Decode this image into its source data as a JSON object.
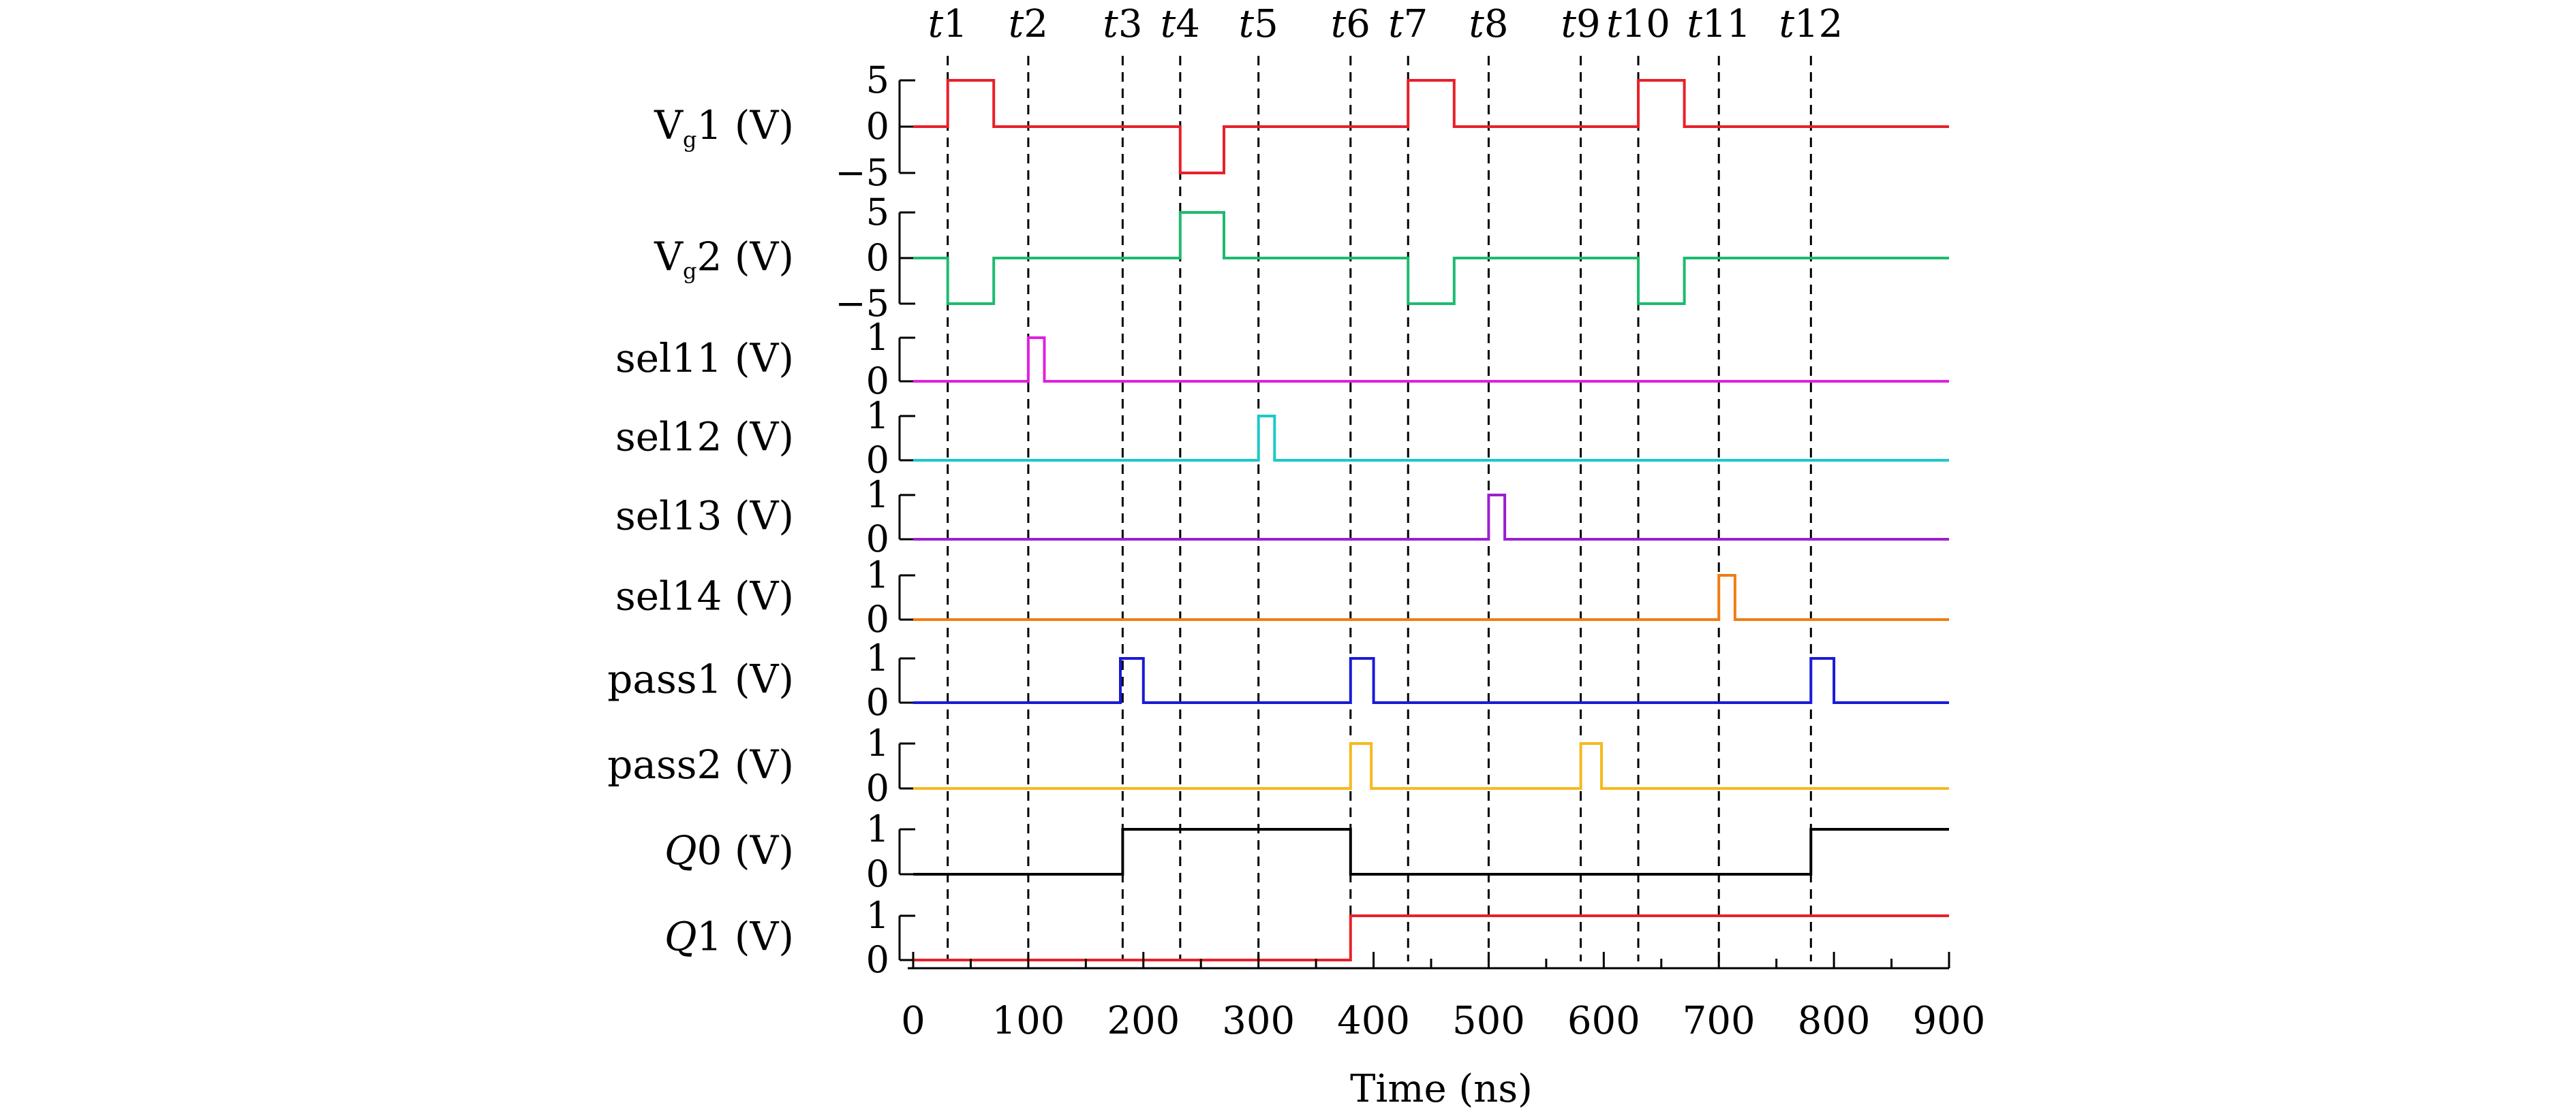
{
  "chart_data": {
    "type": "line",
    "title": "",
    "xlabel": "Time (ns)",
    "xlim": [
      0,
      900
    ],
    "x_ticks": [
      0,
      100,
      200,
      300,
      400,
      500,
      600,
      700,
      800,
      900
    ],
    "markers": [
      {
        "label": "t1",
        "t": 30
      },
      {
        "label": "t2",
        "t": 100
      },
      {
        "label": "t3",
        "t": 182
      },
      {
        "label": "t4",
        "t": 232
      },
      {
        "label": "t5",
        "t": 300
      },
      {
        "label": "t6",
        "t": 380
      },
      {
        "label": "t7",
        "t": 430
      },
      {
        "label": "t8",
        "t": 500
      },
      {
        "label": "t9",
        "t": 580
      },
      {
        "label": "t10",
        "t": 630
      },
      {
        "label": "t11",
        "t": 700
      },
      {
        "label": "t12",
        "t": 780
      }
    ],
    "series": [
      {
        "name": "Vg1 (V)",
        "name_main": "V",
        "name_sub": "g",
        "name_rest": "1 (V)",
        "color": "#e8202a",
        "ylim": [
          -5,
          5
        ],
        "yticks": [
          "5",
          "0",
          "−5"
        ],
        "points": [
          [
            0,
            0
          ],
          [
            30,
            0
          ],
          [
            30,
            5
          ],
          [
            70,
            5
          ],
          [
            70,
            0
          ],
          [
            232,
            0
          ],
          [
            232,
            -5
          ],
          [
            270,
            -5
          ],
          [
            270,
            0
          ],
          [
            430,
            0
          ],
          [
            430,
            5
          ],
          [
            470,
            5
          ],
          [
            470,
            0
          ],
          [
            630,
            0
          ],
          [
            630,
            5
          ],
          [
            670,
            5
          ],
          [
            670,
            0
          ],
          [
            900,
            0
          ]
        ]
      },
      {
        "name": "Vg2 (V)",
        "name_main": "V",
        "name_sub": "g",
        "name_rest": "2 (V)",
        "color": "#1dbb6e",
        "ylim": [
          -5,
          5
        ],
        "yticks": [
          "5",
          "0",
          "−5"
        ],
        "points": [
          [
            0,
            0
          ],
          [
            30,
            0
          ],
          [
            30,
            -5
          ],
          [
            70,
            -5
          ],
          [
            70,
            0
          ],
          [
            232,
            0
          ],
          [
            232,
            5
          ],
          [
            270,
            5
          ],
          [
            270,
            0
          ],
          [
            430,
            0
          ],
          [
            430,
            -5
          ],
          [
            470,
            -5
          ],
          [
            470,
            0
          ],
          [
            630,
            0
          ],
          [
            630,
            -5
          ],
          [
            670,
            -5
          ],
          [
            670,
            0
          ],
          [
            900,
            0
          ]
        ]
      },
      {
        "name": "sel11 (V)",
        "color": "#e020e0",
        "ylim": [
          0,
          1
        ],
        "yticks": [
          "1",
          "0"
        ],
        "points": [
          [
            0,
            0
          ],
          [
            100,
            0
          ],
          [
            100,
            1
          ],
          [
            114,
            1
          ],
          [
            114,
            0
          ],
          [
            900,
            0
          ]
        ]
      },
      {
        "name": "sel12 (V)",
        "color": "#1ec8c8",
        "ylim": [
          0,
          1
        ],
        "yticks": [
          "1",
          "0"
        ],
        "points": [
          [
            0,
            0
          ],
          [
            300,
            0
          ],
          [
            300,
            1
          ],
          [
            314,
            1
          ],
          [
            314,
            0
          ],
          [
            900,
            0
          ]
        ]
      },
      {
        "name": "sel13 (V)",
        "color": "#9b1fd0",
        "ylim": [
          0,
          1
        ],
        "yticks": [
          "1",
          "0"
        ],
        "points": [
          [
            0,
            0
          ],
          [
            500,
            0
          ],
          [
            500,
            1
          ],
          [
            514,
            1
          ],
          [
            514,
            0
          ],
          [
            900,
            0
          ]
        ]
      },
      {
        "name": "sel14 (V)",
        "color": "#f07d12",
        "ylim": [
          0,
          1
        ],
        "yticks": [
          "1",
          "0"
        ],
        "points": [
          [
            0,
            0
          ],
          [
            700,
            0
          ],
          [
            700,
            1
          ],
          [
            714,
            1
          ],
          [
            714,
            0
          ],
          [
            900,
            0
          ]
        ]
      },
      {
        "name": "pass1 (V)",
        "color": "#1a1ad8",
        "ylim": [
          0,
          1
        ],
        "yticks": [
          "1",
          "0"
        ],
        "points": [
          [
            0,
            0
          ],
          [
            180,
            0
          ],
          [
            180,
            1
          ],
          [
            200,
            1
          ],
          [
            200,
            0
          ],
          [
            380,
            0
          ],
          [
            380,
            1
          ],
          [
            400,
            1
          ],
          [
            400,
            0
          ],
          [
            780,
            0
          ],
          [
            780,
            1
          ],
          [
            800,
            1
          ],
          [
            800,
            0
          ],
          [
            900,
            0
          ]
        ]
      },
      {
        "name": "pass2 (V)",
        "color": "#f5b91e",
        "ylim": [
          0,
          1
        ],
        "yticks": [
          "1",
          "0"
        ],
        "points": [
          [
            0,
            0
          ],
          [
            380,
            0
          ],
          [
            380,
            1
          ],
          [
            398,
            1
          ],
          [
            398,
            0
          ],
          [
            580,
            0
          ],
          [
            580,
            1
          ],
          [
            598,
            1
          ],
          [
            598,
            0
          ],
          [
            900,
            0
          ]
        ]
      },
      {
        "name": "Q0 (V)",
        "name_italic": "Q",
        "name_rest": "0 (V)",
        "color": "#000000",
        "ylim": [
          0,
          1
        ],
        "yticks": [
          "1",
          "0"
        ],
        "points": [
          [
            0,
            0
          ],
          [
            182,
            0
          ],
          [
            182,
            1
          ],
          [
            380,
            1
          ],
          [
            380,
            0
          ],
          [
            780,
            0
          ],
          [
            780,
            1
          ],
          [
            900,
            1
          ]
        ]
      },
      {
        "name": "Q1 (V)",
        "name_italic": "Q",
        "name_rest": "1 (V)",
        "color": "#e8202a",
        "ylim": [
          0,
          1
        ],
        "yticks": [
          "1",
          "0"
        ],
        "points": [
          [
            0,
            0
          ],
          [
            380,
            0
          ],
          [
            380,
            1
          ],
          [
            900,
            1
          ]
        ]
      }
    ]
  }
}
